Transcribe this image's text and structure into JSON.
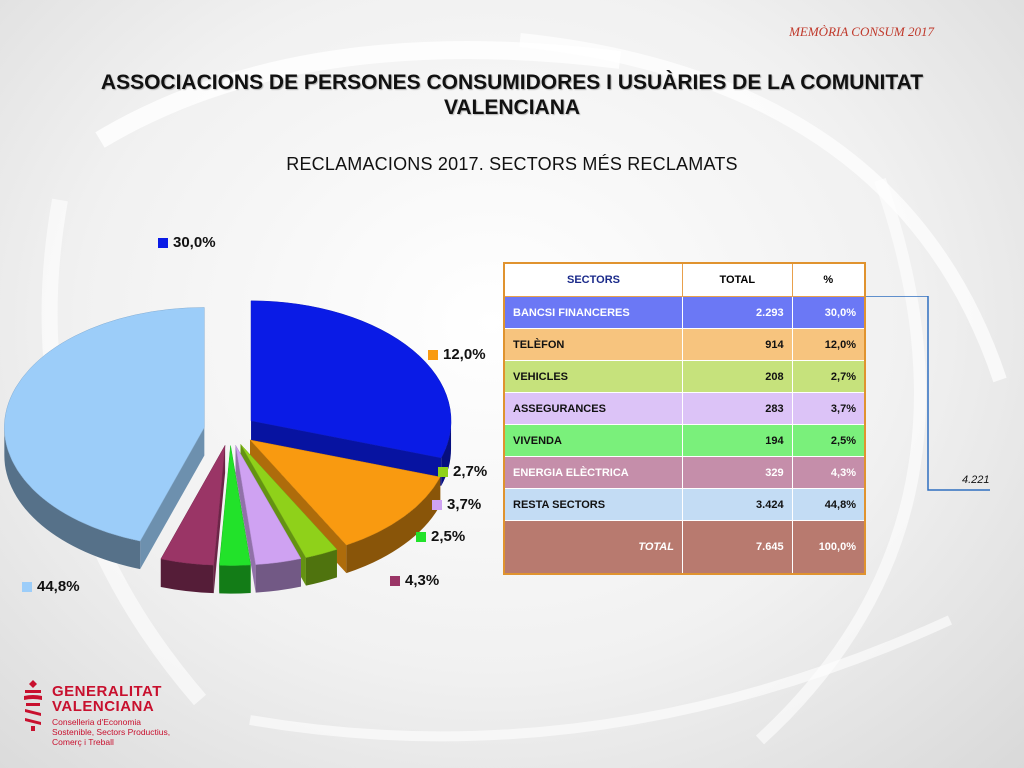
{
  "header": {
    "note": "MEMÒRIA CONSUM 2017"
  },
  "title": {
    "line1": "ASSOCIACIONS DE PERSONES CONSUMIDORES I USUÀRIES DE LA COMUNITAT",
    "line2": "VALENCIANA"
  },
  "subtitle": "RECLAMACIONS 2017. SECTORS MÉS RECLAMATS",
  "chart_data": {
    "type": "pie",
    "title": "RECLAMACIONS 2017. SECTORS MÉS RECLAMATS",
    "slices": [
      {
        "label": "30,0%",
        "value": 30.0,
        "color": "#0a1be6"
      },
      {
        "label": "12,0%",
        "value": 12.0,
        "color": "#f99a10"
      },
      {
        "label": "2,7%",
        "value": 2.7,
        "color": "#8fd11a"
      },
      {
        "label": "3,7%",
        "value": 3.7,
        "color": "#cfa2f2"
      },
      {
        "label": "2,5%",
        "value": 2.5,
        "color": "#22e22a"
      },
      {
        "label": "4,3%",
        "value": 4.3,
        "color": "#9a3566"
      },
      {
        "label": "44,8%",
        "value": 44.8,
        "color": "#9ccdf9"
      }
    ]
  },
  "table": {
    "headers": [
      "SECTORS",
      "TOTAL",
      "%"
    ],
    "rows": [
      {
        "sector": "BANCSI FINANCERES",
        "total": "2.293",
        "pct": "30,0%",
        "bg": "#6b78f5",
        "fg": "#ffffff"
      },
      {
        "sector": "TELÈFON",
        "total": "914",
        "pct": "12,0%",
        "bg": "#f7c47e",
        "fg": "#111111"
      },
      {
        "sector": "VEHICLES",
        "total": "208",
        "pct": "2,7%",
        "bg": "#c6e27c",
        "fg": "#111111"
      },
      {
        "sector": "ASSEGURANCES",
        "total": "283",
        "pct": "3,7%",
        "bg": "#dcc3f7",
        "fg": "#111111"
      },
      {
        "sector": "VIVENDA",
        "total": "194",
        "pct": "2,5%",
        "bg": "#7af07b",
        "fg": "#111111"
      },
      {
        "sector": "ENERGIA ELÈCTRICA",
        "total": "329",
        "pct": "4,3%",
        "bg": "#c58eaa",
        "fg": "#ffffff"
      },
      {
        "sector": "RESTA SECTORS",
        "total": "3.424",
        "pct": "44,8%",
        "bg": "#c3dcf4",
        "fg": "#111111"
      }
    ],
    "total_row": {
      "sector": "TOTAL",
      "total": "7.645",
      "pct": "100,0%",
      "bg": "#b87a6f",
      "fg": "#ffffff"
    },
    "bracket_value": "4.221",
    "bracket_color": "#2f6fc0"
  },
  "logo": {
    "line1": "GENERALITAT",
    "line2": "VALENCIANA",
    "dept1": "Conselleria d'Economia",
    "dept2": "Sostenible, Sectors Productius,",
    "dept3": "Comerç i Treball",
    "color": "#c8102e"
  }
}
